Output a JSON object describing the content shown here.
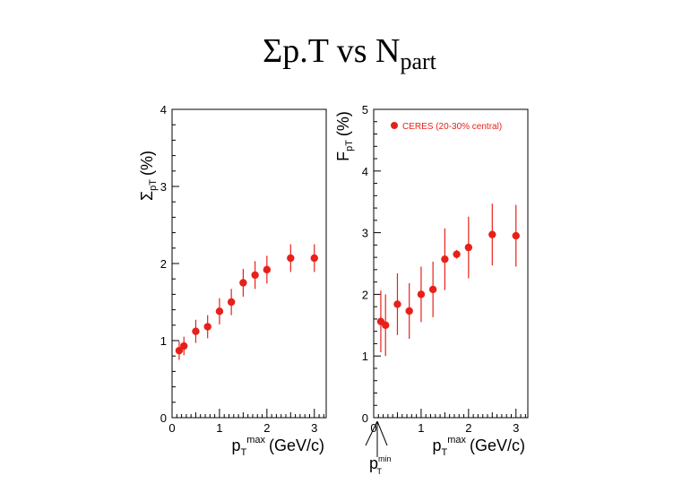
{
  "title": {
    "main": "Σp.T vs N",
    "sub": "part"
  },
  "colors": {
    "marker": "#e8201a",
    "axis": "#000000"
  },
  "annotation": {
    "label": "p",
    "sup": "min",
    "sub": "T"
  },
  "chart_data": [
    {
      "type": "scatter",
      "ylabel": {
        "symbol": "Σ",
        "sub": "pT",
        "unit": "(%)"
      },
      "xlabel": {
        "main": "p",
        "sub": "T",
        "sup": "max",
        "unit": "(GeV/c)"
      },
      "xlim": [
        0,
        3.25
      ],
      "ylim": [
        0,
        4
      ],
      "xticks": [
        "0",
        "1",
        "2",
        "3"
      ],
      "yticks": [
        "0",
        "1",
        "2",
        "3",
        "4"
      ],
      "points": [
        {
          "x": 0.15,
          "y": 0.87,
          "err": 0.12
        },
        {
          "x": 0.25,
          "y": 0.93,
          "err": 0.12
        },
        {
          "x": 0.5,
          "y": 1.12,
          "err": 0.15
        },
        {
          "x": 0.75,
          "y": 1.18,
          "err": 0.15
        },
        {
          "x": 1.0,
          "y": 1.38,
          "err": 0.17
        },
        {
          "x": 1.25,
          "y": 1.5,
          "err": 0.17
        },
        {
          "x": 1.5,
          "y": 1.75,
          "err": 0.18
        },
        {
          "x": 1.75,
          "y": 1.85,
          "err": 0.18
        },
        {
          "x": 2.0,
          "y": 1.92,
          "err": 0.18
        },
        {
          "x": 2.5,
          "y": 2.07,
          "err": 0.18
        },
        {
          "x": 3.0,
          "y": 2.07,
          "err": 0.18
        }
      ]
    },
    {
      "type": "scatter",
      "ylabel": {
        "symbol": "F",
        "sub": "pT",
        "unit": "(%)"
      },
      "xlabel": {
        "main": "p",
        "sub": "T",
        "sup": "max",
        "unit": "(GeV/c)"
      },
      "xlim": [
        0,
        3.25
      ],
      "ylim": [
        0,
        5
      ],
      "xticks": [
        "0",
        "1",
        "2",
        "3"
      ],
      "yticks": [
        "0",
        "1",
        "2",
        "3",
        "4",
        "5"
      ],
      "legend": {
        "label": "CERES (20-30% central)",
        "position": "top-right"
      },
      "points": [
        {
          "x": 0.15,
          "y": 1.56,
          "err": 0.5
        },
        {
          "x": 0.25,
          "y": 1.5,
          "err": 0.5
        },
        {
          "x": 0.5,
          "y": 1.84,
          "err": 0.5
        },
        {
          "x": 0.75,
          "y": 1.73,
          "err": 0.45
        },
        {
          "x": 1.0,
          "y": 2.0,
          "err": 0.45
        },
        {
          "x": 1.25,
          "y": 2.08,
          "err": 0.45
        },
        {
          "x": 1.5,
          "y": 2.57,
          "err": 0.5
        },
        {
          "x": 1.75,
          "y": 2.65,
          "err": 0.07
        },
        {
          "x": 2.0,
          "y": 2.76,
          "err": 0.5
        },
        {
          "x": 2.5,
          "y": 2.97,
          "err": 0.5
        },
        {
          "x": 3.0,
          "y": 2.95,
          "err": 0.5
        }
      ]
    }
  ]
}
